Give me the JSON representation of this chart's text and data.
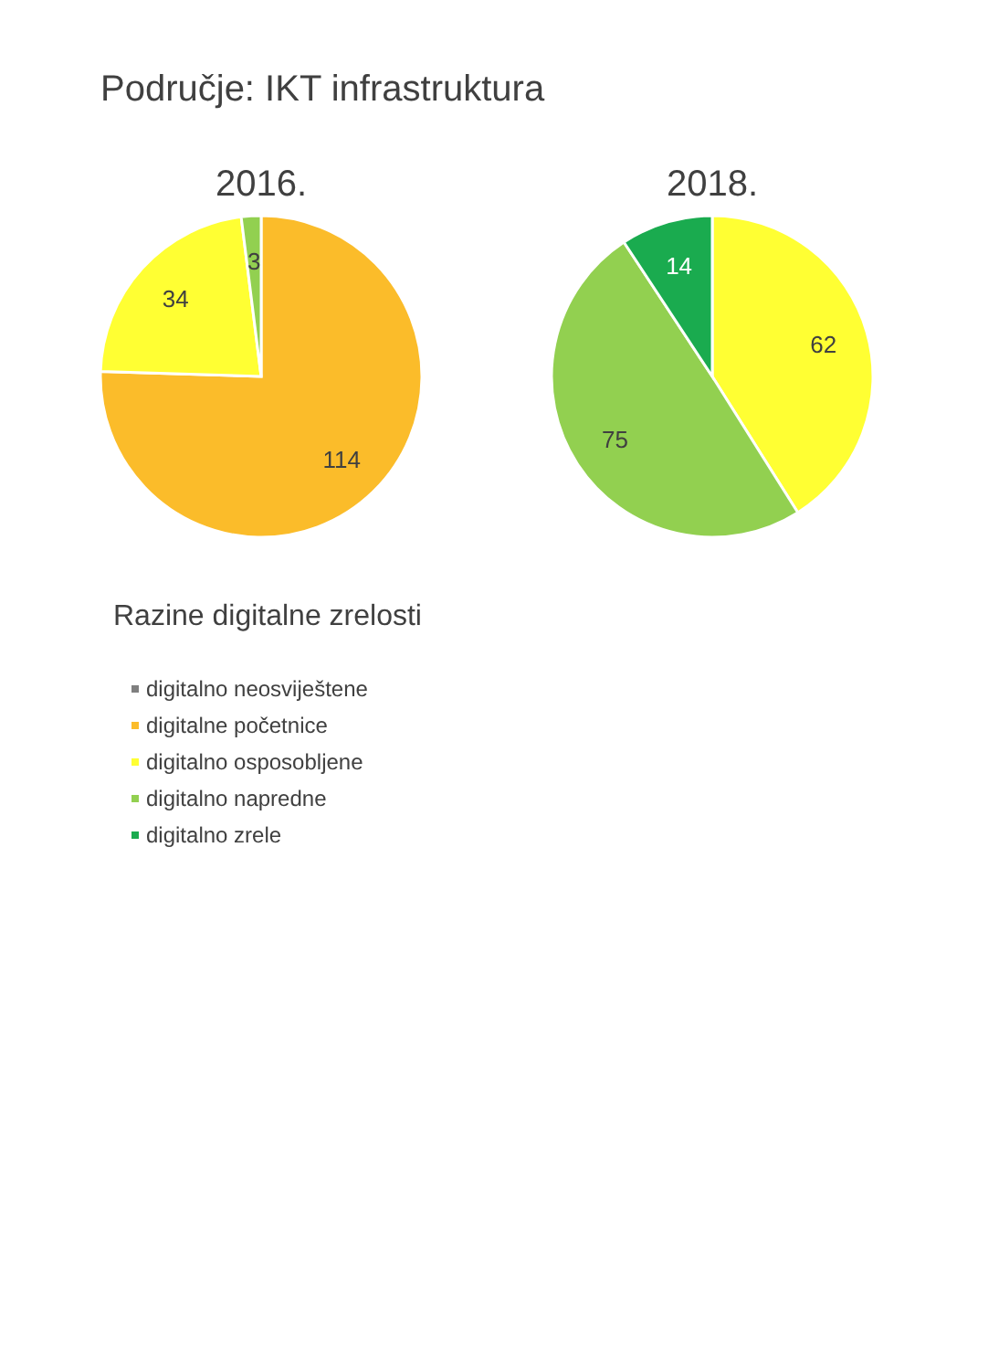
{
  "chart_data": [
    {
      "type": "pie",
      "title": "Područje: IKT infrastruktura",
      "subtitle": "2016.",
      "legend_title": "Razine digitalne zrelosti",
      "legend": "bottom",
      "categories": [
        "digitalno neosviještene",
        "digitalne početnice",
        "digitalno osposobljene",
        "digitalno napredne",
        "digitalno zrele"
      ],
      "values": [
        0,
        114,
        34,
        3,
        0
      ],
      "value_labels": [
        null,
        "114",
        "34",
        "3",
        null
      ],
      "colors": [
        "#7f7f7f",
        "#fbbc2a",
        "#ffff33",
        "#92d050",
        "#1aab4f"
      ]
    },
    {
      "type": "pie",
      "title": "2018.",
      "categories": [
        null,
        null,
        null
      ],
      "values": [
        62,
        75,
        14
      ],
      "value_labels": [
        "62",
        "75",
        "14"
      ],
      "colors": [
        "#ffff33",
        "#92d050",
        "#1aab4f"
      ]
    }
  ]
}
